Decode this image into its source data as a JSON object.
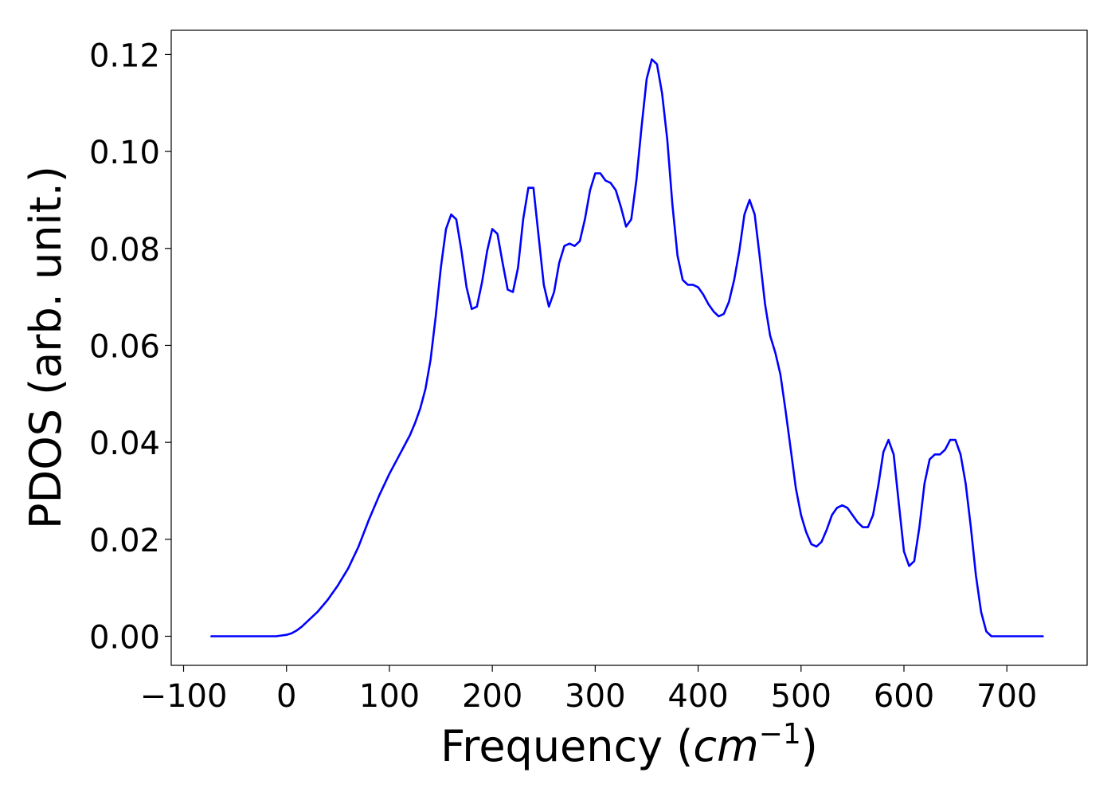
{
  "chart_data": {
    "type": "line",
    "title": "",
    "xlabel_main": "Frequency (",
    "xlabel_unit": "cm",
    "xlabel_exp": "−1",
    "xlabel_close": ")",
    "ylabel": "PDOS (arb. unit.)",
    "xlim": [
      -112,
      778
    ],
    "ylim": [
      -0.006,
      0.125
    ],
    "xticks": [
      -100,
      0,
      100,
      200,
      300,
      400,
      500,
      600,
      700
    ],
    "xtick_labels": [
      "−100",
      "0",
      "100",
      "200",
      "300",
      "400",
      "500",
      "600",
      "700"
    ],
    "yticks": [
      0.0,
      0.02,
      0.04,
      0.06,
      0.08,
      0.1,
      0.12
    ],
    "ytick_labels": [
      "0.00",
      "0.02",
      "0.04",
      "0.06",
      "0.08",
      "0.10",
      "0.12"
    ],
    "grid": false,
    "series": [
      {
        "color": "#0000ff",
        "x": [
          -73,
          -60,
          -40,
          -20,
          -10,
          0,
          5,
          10,
          15,
          20,
          30,
          40,
          50,
          60,
          70,
          80,
          90,
          100,
          110,
          120,
          125,
          130,
          135,
          140,
          145,
          150,
          155,
          160,
          165,
          170,
          175,
          180,
          185,
          190,
          195,
          200,
          205,
          210,
          215,
          220,
          225,
          230,
          235,
          240,
          245,
          250,
          255,
          260,
          265,
          270,
          275,
          280,
          285,
          290,
          295,
          300,
          305,
          310,
          315,
          320,
          325,
          330,
          335,
          340,
          345,
          350,
          355,
          360,
          365,
          370,
          375,
          380,
          385,
          390,
          395,
          400,
          405,
          410,
          415,
          420,
          425,
          430,
          435,
          440,
          445,
          450,
          455,
          460,
          465,
          470,
          475,
          480,
          485,
          490,
          495,
          500,
          505,
          510,
          515,
          520,
          525,
          530,
          535,
          540,
          545,
          550,
          555,
          560,
          565,
          570,
          575,
          580,
          585,
          590,
          595,
          600,
          605,
          610,
          615,
          620,
          625,
          630,
          635,
          640,
          645,
          650,
          655,
          660,
          665,
          670,
          675,
          680,
          685,
          690,
          700,
          710,
          720,
          735
        ],
        "y": [
          0.0,
          0.0,
          0.0,
          0.0,
          0.0,
          0.0003,
          0.0006,
          0.0012,
          0.002,
          0.003,
          0.005,
          0.0075,
          0.0105,
          0.014,
          0.0185,
          0.024,
          0.029,
          0.0335,
          0.0375,
          0.0415,
          0.044,
          0.047,
          0.051,
          0.057,
          0.066,
          0.076,
          0.084,
          0.087,
          0.086,
          0.0795,
          0.072,
          0.0675,
          0.068,
          0.073,
          0.0795,
          0.084,
          0.083,
          0.077,
          0.0715,
          0.071,
          0.076,
          0.086,
          0.0925,
          0.0925,
          0.0825,
          0.0725,
          0.068,
          0.071,
          0.077,
          0.0805,
          0.081,
          0.0805,
          0.0815,
          0.086,
          0.092,
          0.0955,
          0.0955,
          0.094,
          0.0935,
          0.092,
          0.0885,
          0.0845,
          0.086,
          0.094,
          0.105,
          0.115,
          0.119,
          0.118,
          0.112,
          0.1025,
          0.089,
          0.0785,
          0.0735,
          0.0725,
          0.0725,
          0.072,
          0.0705,
          0.0685,
          0.067,
          0.066,
          0.0665,
          0.069,
          0.0735,
          0.0795,
          0.087,
          0.09,
          0.087,
          0.078,
          0.0685,
          0.062,
          0.0585,
          0.054,
          0.0465,
          0.0385,
          0.0305,
          0.025,
          0.0215,
          0.019,
          0.0185,
          0.0195,
          0.022,
          0.025,
          0.0265,
          0.027,
          0.0265,
          0.025,
          0.0235,
          0.0225,
          0.0225,
          0.025,
          0.031,
          0.038,
          0.0405,
          0.0375,
          0.0275,
          0.0175,
          0.0145,
          0.0155,
          0.0225,
          0.0315,
          0.0365,
          0.0375,
          0.0375,
          0.0385,
          0.0405,
          0.0405,
          0.0375,
          0.0315,
          0.0225,
          0.0125,
          0.005,
          0.001,
          0.0,
          0.0,
          0.0,
          0.0,
          0.0,
          0.0
        ]
      }
    ]
  }
}
